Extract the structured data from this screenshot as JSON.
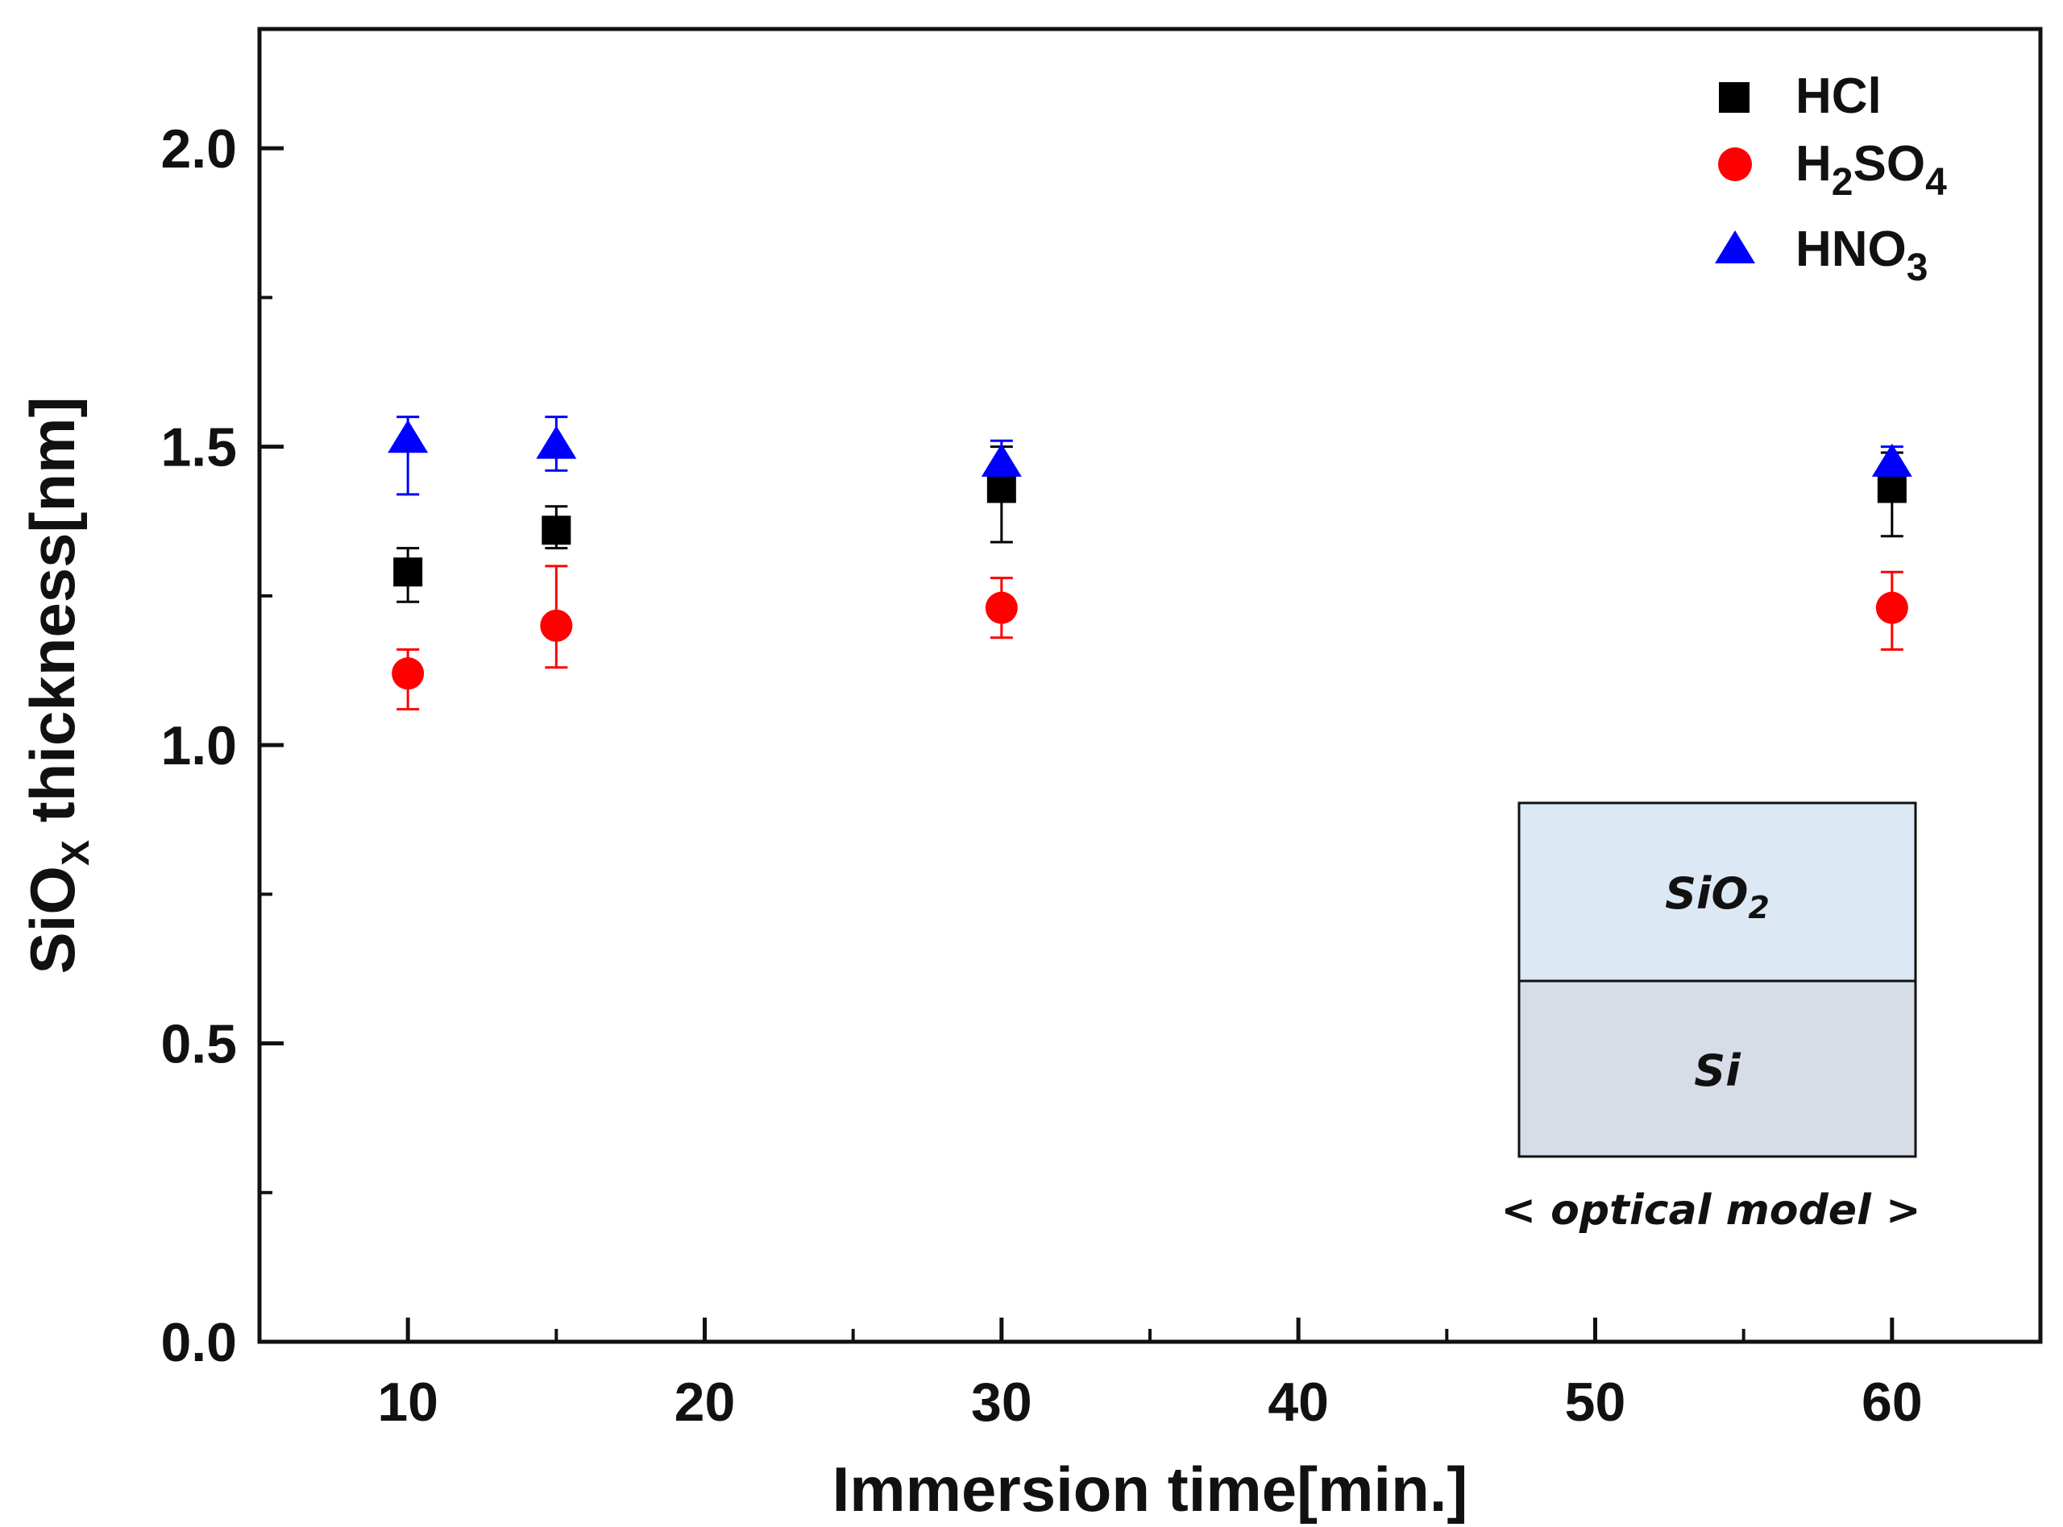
{
  "chart_data": {
    "type": "scatter",
    "title": "",
    "xlabel": "Immersion time[min.]",
    "ylabel": "SiO",
    "ylabel_sub": "X",
    "ylabel_rest": " thickness[nm]",
    "xlim": [
      5,
      65
    ],
    "ylim": [
      0,
      2.2
    ],
    "x_ticks": [
      10,
      20,
      30,
      40,
      50,
      60
    ],
    "y_ticks": [
      0.0,
      0.5,
      1.0,
      1.5,
      2.0
    ],
    "x_tick_labels": [
      "10",
      "20",
      "30",
      "40",
      "50",
      "60"
    ],
    "y_tick_labels": [
      "0.0",
      "0.5",
      "1.0",
      "1.5",
      "2.0"
    ],
    "grid": false,
    "legend_position": "top-right",
    "series": [
      {
        "name": "HCl",
        "label_main": "HCl",
        "marker": "square",
        "color": "#000000",
        "x": [
          10,
          15,
          30,
          60
        ],
        "y": [
          1.29,
          1.36,
          1.43,
          1.43
        ],
        "err_plus": [
          0.04,
          0.04,
          0.07,
          0.06
        ],
        "err_minus": [
          0.05,
          0.03,
          0.09,
          0.08
        ]
      },
      {
        "name": "H2SO4",
        "label_parts": [
          "H",
          "2",
          "SO",
          "4"
        ],
        "marker": "circle",
        "color": "#ff0000",
        "x": [
          10,
          15,
          30,
          60
        ],
        "y": [
          1.12,
          1.2,
          1.23,
          1.23
        ],
        "err_plus": [
          0.04,
          0.1,
          0.05,
          0.06
        ],
        "err_minus": [
          0.06,
          0.07,
          0.05,
          0.07
        ]
      },
      {
        "name": "HNO3",
        "label_parts": [
          "HNO",
          "3"
        ],
        "marker": "triangle",
        "color": "#0000ff",
        "x": [
          10,
          15,
          30,
          60
        ],
        "y": [
          1.51,
          1.5,
          1.47,
          1.47
        ],
        "err_plus": [
          0.04,
          0.05,
          0.04,
          0.03
        ],
        "err_minus": [
          0.09,
          0.04,
          0.03,
          0.03
        ]
      }
    ],
    "inset": {
      "top_layer": "SiO",
      "top_layer_sub": "2",
      "bottom_layer": "Si",
      "caption": "< optical model >",
      "top_color": "#dce9f5",
      "bottom_color": "#d6dde6"
    }
  }
}
